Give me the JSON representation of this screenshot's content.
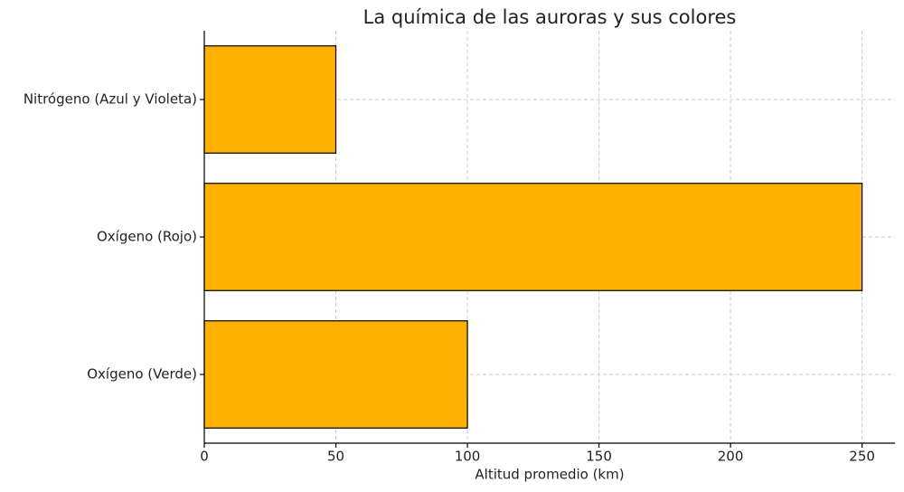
{
  "chart_data": {
    "type": "barh",
    "title": "La química de las auroras y sus colores",
    "xlabel": "Altitud promedio (km)",
    "categories": [
      "Oxígeno (Verde)",
      "Oxígeno (Rojo)",
      "Nitrógeno (Azul y Violeta)"
    ],
    "values": [
      100,
      250,
      50
    ],
    "color": "#ffb000",
    "xlim": [
      0,
      262.5
    ],
    "xticks": [
      0,
      50,
      100,
      150,
      200,
      250
    ],
    "grid": true
  }
}
